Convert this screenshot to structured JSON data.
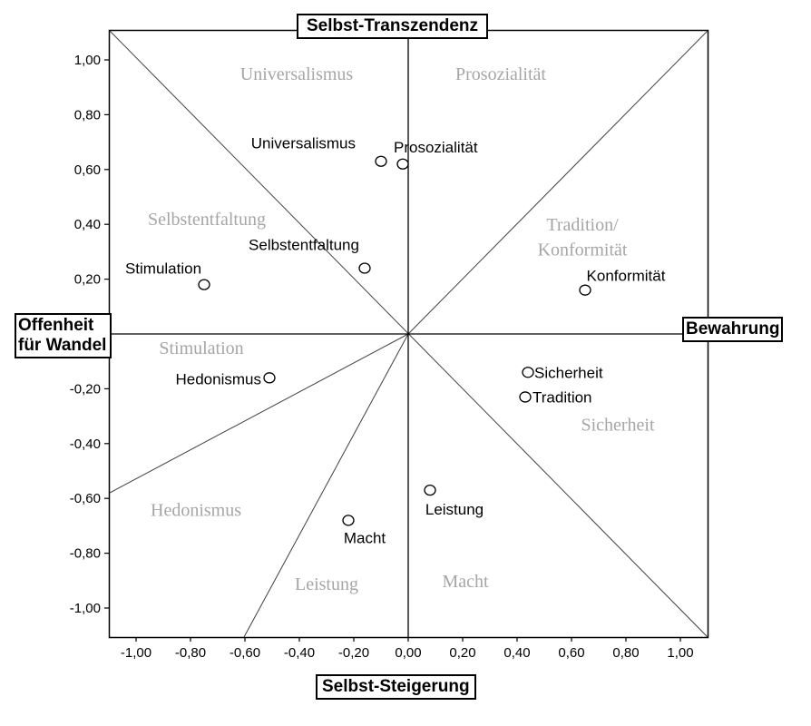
{
  "chart_data": {
    "type": "scatter",
    "xlim": [
      -1.1,
      1.1
    ],
    "ylim": [
      -1.1,
      1.1
    ],
    "x_ticks": [
      "-1,00",
      "-0,80",
      "-0,60",
      "-0,40",
      "-0,20",
      "0,00",
      "0,20",
      "0,40",
      "0,60",
      "0,80",
      "1,00"
    ],
    "y_ticks": [
      "1,00",
      "0,80",
      "0,60",
      "0,40",
      "0,20",
      "-0,20",
      "-0,40",
      "-0,60",
      "-0,80",
      "-1,00"
    ],
    "dimensions": {
      "top": "Selbst-Transzendenz",
      "bottom": "Selbst-Steigerung",
      "left": [
        "Offenheit",
        "für Wandel"
      ],
      "right": "Bewahrung"
    },
    "points": [
      {
        "label": "Universalismus",
        "x": -0.1,
        "y": 0.63
      },
      {
        "label": "Prosozialität",
        "x": -0.02,
        "y": 0.62
      },
      {
        "label": "Selbstentfaltung",
        "x": -0.16,
        "y": 0.24
      },
      {
        "label": "Stimulation",
        "x": -0.75,
        "y": 0.18
      },
      {
        "label": "Konformität",
        "x": 0.65,
        "y": 0.16
      },
      {
        "label": "Hedonismus",
        "x": -0.51,
        "y": -0.16
      },
      {
        "label": "Sicherheit",
        "x": 0.44,
        "y": -0.14
      },
      {
        "label": "Tradition",
        "x": 0.43,
        "y": -0.23
      },
      {
        "label": "Leistung",
        "x": 0.08,
        "y": -0.57
      },
      {
        "label": "Macht",
        "x": -0.22,
        "y": -0.68
      }
    ],
    "regions": [
      {
        "text": "Universalismus",
        "x": -0.41,
        "y": 0.95
      },
      {
        "text": "Prosozialität",
        "x": 0.34,
        "y": 0.95
      },
      {
        "text": "Selbstentfaltung",
        "x": -0.74,
        "y": 0.42
      },
      {
        "text": "Tradition/",
        "x": 0.64,
        "y": 0.4
      },
      {
        "text": "Konformität",
        "x": 0.64,
        "y": 0.31
      },
      {
        "text": "Stimulation",
        "x": -0.76,
        "y": -0.05
      },
      {
        "text": "Sicherheit",
        "x": 0.77,
        "y": -0.33
      },
      {
        "text": "Hedonismus",
        "x": -0.78,
        "y": -0.64
      },
      {
        "text": "Leistung",
        "x": -0.3,
        "y": -0.91
      },
      {
        "text": "Macht",
        "x": 0.21,
        "y": -0.9
      }
    ]
  }
}
